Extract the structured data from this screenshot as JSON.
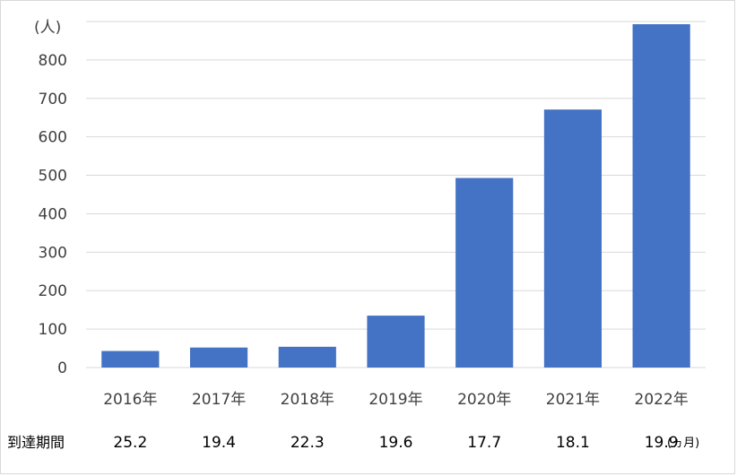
{
  "chart_data": {
    "type": "bar",
    "categories": [
      "2016年",
      "2017年",
      "2018年",
      "2019年",
      "2020年",
      "2021年",
      "2022年"
    ],
    "values": [
      43,
      52,
      54,
      135,
      493,
      671,
      893
    ],
    "y_unit": "(人)",
    "ylim": [
      0,
      900
    ],
    "yticks": [
      0,
      100,
      200,
      300,
      400,
      500,
      600,
      700,
      800
    ],
    "bar_color": "#4472c4",
    "grid": true,
    "legend": "none",
    "table_row": {
      "label": "到達期間",
      "values": [
        "25.2",
        "19.4",
        "22.3",
        "19.6",
        "17.7",
        "18.1",
        "19.9"
      ],
      "unit": "(ヵ月)"
    }
  }
}
